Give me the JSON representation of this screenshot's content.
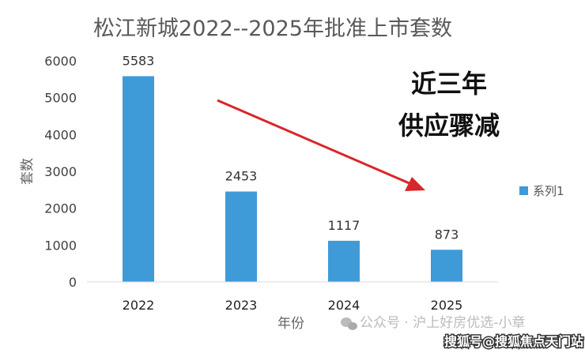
{
  "chart_data": {
    "type": "bar",
    "title": "松江新城2022--2025年批准上市套数",
    "xlabel": "年份",
    "ylabel": "套数",
    "categories": [
      "2022",
      "2023",
      "2024",
      "2025"
    ],
    "series": [
      {
        "name": "系列1",
        "values": [
          5583,
          2453,
          1117,
          873
        ]
      }
    ],
    "data_labels": [
      "5583",
      "2453",
      "1117",
      "873"
    ],
    "ylim": [
      0,
      6000
    ],
    "yticks": [
      "0",
      "1000",
      "2000",
      "3000",
      "4000",
      "5000",
      "6000"
    ],
    "grid": false,
    "legend": "right",
    "bar_color": "#3f9ad8",
    "annotations": {
      "line1": "近三年",
      "line2": "供应骤减",
      "arrow_color": "#d9262a"
    }
  },
  "watermark": "公众号 · 沪上好房优选-小章",
  "source": "搜狐号@搜狐焦点天门站"
}
